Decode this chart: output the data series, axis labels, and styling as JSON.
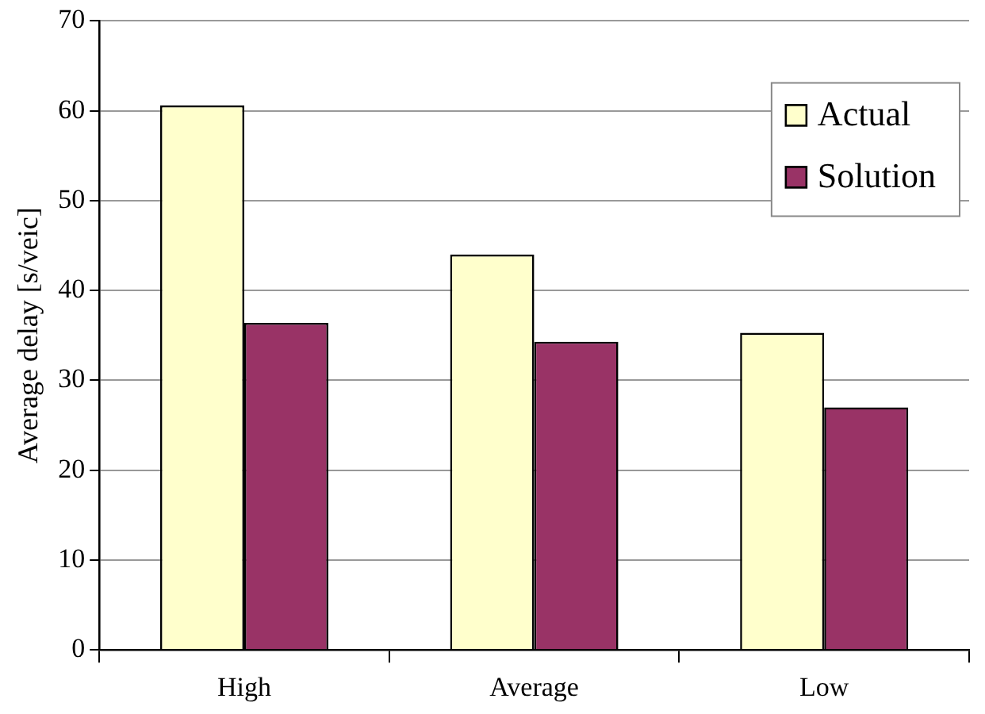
{
  "chart_data": {
    "type": "bar",
    "ylabel": "Average delay [s/veic]",
    "categories": [
      "High",
      "Average",
      "Low"
    ],
    "series": [
      {
        "name": "Actual",
        "color": "#ffffcc",
        "values": [
          60.6,
          44.0,
          35.3
        ]
      },
      {
        "name": "Solution",
        "color": "#993366",
        "values": [
          36.4,
          34.3,
          27.0
        ]
      }
    ],
    "ylim": [
      0,
      70
    ],
    "yticks": [
      0,
      10,
      20,
      30,
      40,
      50,
      60,
      70
    ],
    "grid": "y",
    "legend": "top right"
  }
}
